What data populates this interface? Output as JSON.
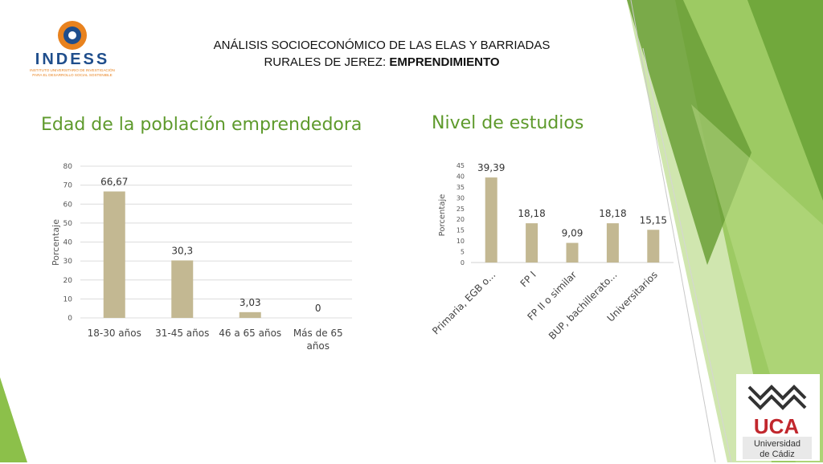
{
  "header": {
    "title_line1": "ANÁLISIS SOCIOECONÓMICO DE LAS ELAS Y BARRIADAS",
    "title_line2_prefix": "RURALES DE JEREZ: ",
    "title_line2_bold": "EMPRENDIMIENTO"
  },
  "logos": {
    "indess_name": "INDESS",
    "indess_subtitle_1": "INSTITUTO UNIVERSITARIO DE INVESTIGACIÓN",
    "indess_subtitle_2": "PARA EL DESARROLLO SOCIAL SOSTENIBLE",
    "uca_name": "UCA",
    "uca_line1": "Universidad",
    "uca_line2": "de Cádiz"
  },
  "colors": {
    "bar": "#c3b892",
    "title_green": "#5e9a2c",
    "deco_green_light": "#a9d16e",
    "deco_green_dark": "#6b9f37",
    "uca_red": "#c1272d"
  },
  "chart_data": [
    {
      "type": "bar",
      "title": "Edad de la población emprendedora",
      "ylabel": "Porcentaje",
      "xlabel": "",
      "categories": [
        "18-30 años",
        "31-45 años",
        "46 a 65 años",
        "Más de 65 años"
      ],
      "category_lines": [
        [
          "18-30 años"
        ],
        [
          "31-45 años"
        ],
        [
          "46 a 65 años"
        ],
        [
          "Más de 65",
          "años"
        ]
      ],
      "values": [
        66.67,
        30.3,
        3.03,
        0
      ],
      "value_labels": [
        "66,67",
        "30,3",
        "3,03",
        "0"
      ],
      "ylim": [
        0,
        80
      ],
      "yticks": [
        0,
        10,
        20,
        30,
        40,
        50,
        60,
        70,
        80
      ],
      "grid": true
    },
    {
      "type": "bar",
      "title": "Nivel de estudios",
      "ylabel": "Porcentaje",
      "xlabel": "",
      "categories": [
        "Primaria, EGB o...",
        "FP I",
        "FP II o similar",
        "BUP, bachillerato...",
        "Universitarios"
      ],
      "values": [
        39.39,
        18.18,
        9.09,
        18.18,
        15.15
      ],
      "value_labels": [
        "39,39",
        "18,18",
        "9,09",
        "18,18",
        "15,15"
      ],
      "ylim": [
        0,
        45
      ],
      "yticks": [
        0,
        5,
        10,
        15,
        20,
        25,
        30,
        35,
        40,
        45
      ],
      "grid": false
    }
  ]
}
